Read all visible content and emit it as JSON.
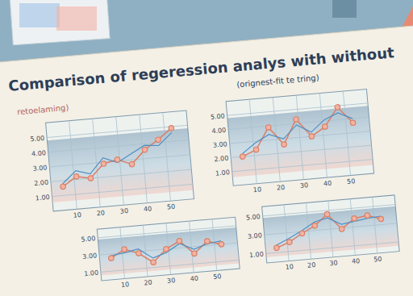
{
  "header": {
    "title": "Comparison of regeression analys with without",
    "subtitle": "(orignest-fit te tring)",
    "note": "retoelaming)"
  },
  "chart_data": [
    {
      "type": "line",
      "grid": true,
      "x": [
        5,
        11,
        17,
        23,
        29,
        35,
        41,
        47,
        53
      ],
      "xlim": [
        0,
        60
      ],
      "xticks": [
        10,
        20,
        30,
        40,
        50
      ],
      "ylim": [
        0,
        6
      ],
      "yticks": [
        {
          "value": 1,
          "label": "1.00"
        },
        {
          "value": 2,
          "label": "2.00"
        },
        {
          "value": 3,
          "label": "3.00"
        },
        {
          "value": 4,
          "label": "4.00"
        },
        {
          "value": 5,
          "label": "5.00"
        }
      ],
      "series": [
        {
          "color": "#d9826a",
          "marker": "circle",
          "values": [
            1.6,
            2.2,
            2.0,
            2.9,
            3.1,
            2.7,
            3.6,
            4.2,
            4.9
          ]
        },
        {
          "color": "#4f8fc4",
          "marker": "none",
          "values": [
            1.8,
            2.6,
            2.3,
            3.3,
            2.9,
            3.4,
            3.9,
            3.8,
            4.6
          ]
        }
      ]
    },
    {
      "type": "line",
      "grid": true,
      "x": [
        5,
        11,
        17,
        23,
        29,
        35,
        41,
        47,
        53
      ],
      "xlim": [
        0,
        60
      ],
      "xticks": [
        10,
        20,
        30,
        40,
        50
      ],
      "ylim": [
        0,
        6
      ],
      "yticks": [
        {
          "value": 1,
          "label": "1.00"
        },
        {
          "value": 2,
          "label": "2.00"
        },
        {
          "value": 3,
          "label": "3.00"
        },
        {
          "value": 4,
          "label": "4.00"
        },
        {
          "value": 5,
          "label": "5.00"
        }
      ],
      "series": [
        {
          "color": "#d9826a",
          "marker": "circle",
          "values": [
            2.0,
            2.4,
            3.9,
            2.6,
            4.3,
            3.0,
            3.6,
            4.9,
            3.7
          ]
        },
        {
          "color": "#4f8fc4",
          "marker": "none",
          "values": [
            2.2,
            2.9,
            3.4,
            3.0,
            3.9,
            3.3,
            4.1,
            4.5,
            4.0
          ]
        }
      ]
    },
    {
      "type": "line",
      "grid": true,
      "x": [
        5,
        11,
        17,
        23,
        29,
        35,
        41,
        47,
        53
      ],
      "xlim": [
        0,
        60
      ],
      "xticks": [
        10,
        20,
        30,
        40,
        50
      ],
      "ylim": [
        0,
        6
      ],
      "yticks": [
        {
          "value": 1,
          "label": "1.00"
        },
        {
          "value": 3,
          "label": "3.00"
        },
        {
          "value": 5,
          "label": "5.00"
        }
      ],
      "series": [
        {
          "color": "#d9826a",
          "marker": "circle",
          "values": [
            2.5,
            3.4,
            2.8,
            1.6,
            3.0,
            3.8,
            2.2,
            3.5,
            3.0
          ]
        },
        {
          "color": "#4f8fc4",
          "marker": "none",
          "values": [
            2.8,
            3.0,
            3.3,
            2.1,
            2.6,
            3.5,
            2.7,
            3.2,
            3.4
          ]
        }
      ]
    },
    {
      "type": "line",
      "grid": true,
      "x": [
        5,
        11,
        17,
        23,
        29,
        35,
        41,
        47,
        53
      ],
      "xlim": [
        0,
        60
      ],
      "xticks": [
        10,
        20,
        30,
        40,
        50
      ],
      "ylim": [
        0,
        6
      ],
      "yticks": [
        {
          "value": 1,
          "label": "1.00"
        },
        {
          "value": 3,
          "label": "3.00"
        },
        {
          "value": 5,
          "label": "5.00"
        }
      ],
      "series": [
        {
          "color": "#d9826a",
          "marker": "circle",
          "values": [
            1.5,
            2.0,
            2.8,
            3.5,
            4.6,
            2.9,
            3.9,
            4.1,
            3.6
          ]
        },
        {
          "color": "#4f8fc4",
          "marker": "none",
          "values": [
            1.8,
            2.4,
            3.1,
            3.9,
            4.2,
            3.4,
            3.6,
            3.8,
            3.9
          ]
        }
      ]
    }
  ]
}
